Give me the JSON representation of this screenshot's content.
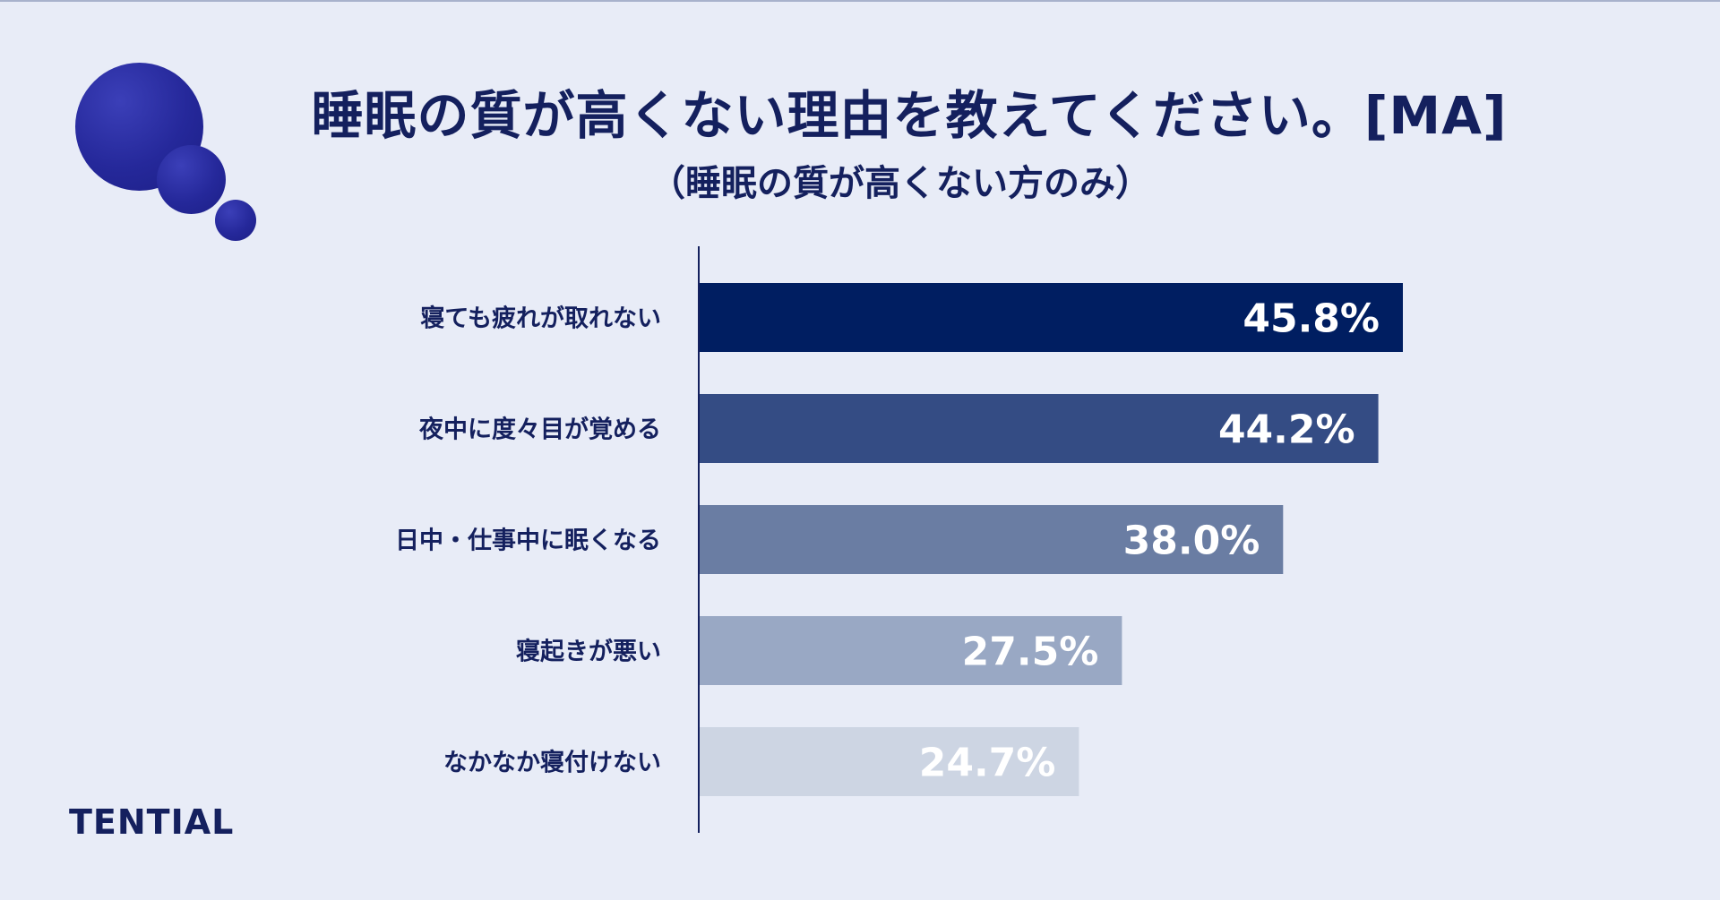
{
  "header": {
    "title": "睡眠の質が高くない理由を教えてください。[MA]",
    "subtitle": "（睡眠の質が高くない方のみ）"
  },
  "brand": {
    "name": "TENTIAL"
  },
  "decor": {
    "icon": "thought-bubble-icon",
    "bubble_color": "#25289a"
  },
  "chart_data": {
    "type": "bar",
    "orientation": "horizontal",
    "categories": [
      "寝ても疲れが取れない",
      "夜中に度々目が覚める",
      "日中・仕事中に眠くなる",
      "寝起きが悪い",
      "なかなか寝付けない"
    ],
    "values": [
      45.8,
      44.2,
      38.0,
      27.5,
      24.7
    ],
    "value_labels": [
      "45.8%",
      "44.2%",
      "38.0%",
      "27.5%",
      "24.7%"
    ],
    "colors": [
      "#001e61",
      "#344c84",
      "#6a7da3",
      "#99a8c4",
      "#cdd5e3"
    ],
    "unit": "%",
    "grid": false,
    "legend": "none"
  }
}
